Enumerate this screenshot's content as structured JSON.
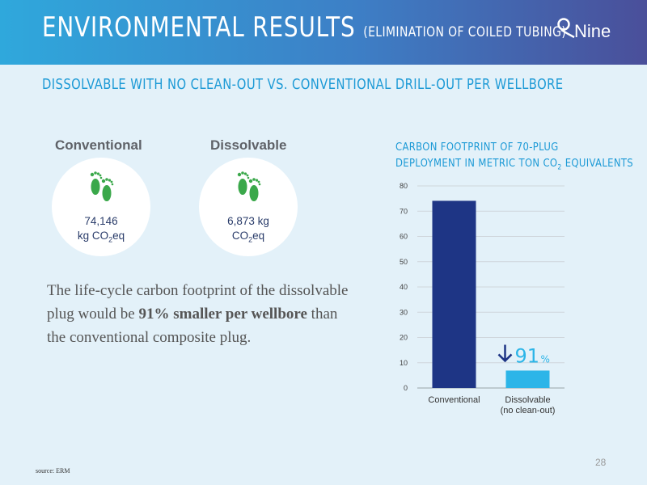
{
  "header": {
    "title": "ENVIRONMENTAL RESULTS",
    "title_sub": "(ELIMINATION OF COILED TUBING)",
    "logo_text": "Nine"
  },
  "subtitle": "DISSOLVABLE WITH NO CLEAN-OUT VS. CONVENTIONAL DRILL-OUT PER WELLBORE",
  "comparison": {
    "conventional": {
      "label": "Conventional",
      "value": "74,146",
      "unit_a": "kg CO",
      "unit_sub": "2",
      "unit_b": "eq"
    },
    "dissolvable": {
      "label": "Dissolvable",
      "value": "6,873 kg",
      "unit_a": "CO",
      "unit_sub": "2",
      "unit_b": "eq"
    },
    "foot_icon_color": "#3aa84a"
  },
  "body_text": {
    "part1": "The life-cycle carbon footprint of the dissolvable plug would be ",
    "bold": "91% smaller per wellbore",
    "part2": " than the conventional composite plug."
  },
  "chart_title": {
    "line1": "CARBON FOOTPRINT OF 70-PLUG",
    "line2a": "DEPLOYMENT IN METRIC TON CO",
    "line2sub": "2",
    "line2b": " EQUIVALENTS"
  },
  "chart_data": {
    "type": "bar",
    "categories": [
      "Conventional",
      "Dissolvable\n(no clean-out)"
    ],
    "values": [
      74.1,
      6.9
    ],
    "colors": [
      "#1e3585",
      "#2cb5e8"
    ],
    "ylim": [
      0,
      80
    ],
    "yticks": [
      0,
      10,
      20,
      30,
      40,
      50,
      60,
      70,
      80
    ],
    "grid": true,
    "annotation": {
      "arrow": "down",
      "number": "91",
      "unit": "%",
      "color": "#2cb5e8",
      "arrow_color": "#1e3585"
    }
  },
  "footer": {
    "source": "source: ERM",
    "page_number": "28"
  }
}
